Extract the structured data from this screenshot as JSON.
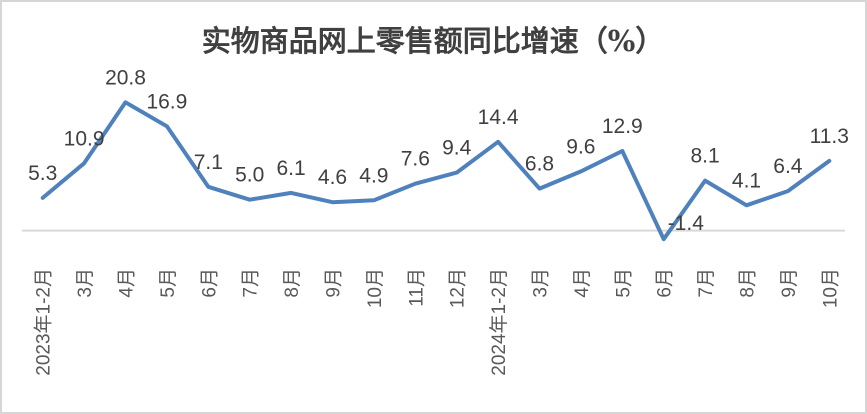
{
  "chart_data": {
    "type": "line",
    "title": "实物商品网上零售额同比增速（%）",
    "categories": [
      "2023年1-2月",
      "3月",
      "4月",
      "5月",
      "6月",
      "7月",
      "8月",
      "9月",
      "10月",
      "11月",
      "12月",
      "2024年1-2月",
      "3月",
      "4月",
      "5月",
      "6月",
      "7月",
      "8月",
      "9月",
      "10月"
    ],
    "values": [
      5.3,
      10.9,
      20.8,
      16.9,
      7.1,
      5.0,
      6.1,
      4.6,
      4.9,
      7.6,
      9.4,
      14.4,
      6.8,
      9.6,
      12.9,
      -1.4,
      8.1,
      4.1,
      6.4,
      11.3
    ],
    "labels": [
      "5.3",
      "10.9",
      "20.8",
      "16.9",
      "7.1",
      "5.0",
      "6.1",
      "4.6",
      "4.9",
      "7.6",
      "9.4",
      "14.4",
      "6.8",
      "9.6",
      "12.9",
      "-1.4",
      "8.1",
      "4.1",
      "6.4",
      "11.3"
    ],
    "xlabel": "",
    "ylabel": "",
    "ylim": [
      -5,
      25
    ],
    "grid": false,
    "legend_position": "none",
    "line_color": "#4F81BD",
    "axis_line_color": "#D9D9D9",
    "data_label_color": "#404040",
    "tick_label_color": "#595959",
    "frame_border_color": "#D6D6D6",
    "background_color": "#FFFFFF"
  }
}
